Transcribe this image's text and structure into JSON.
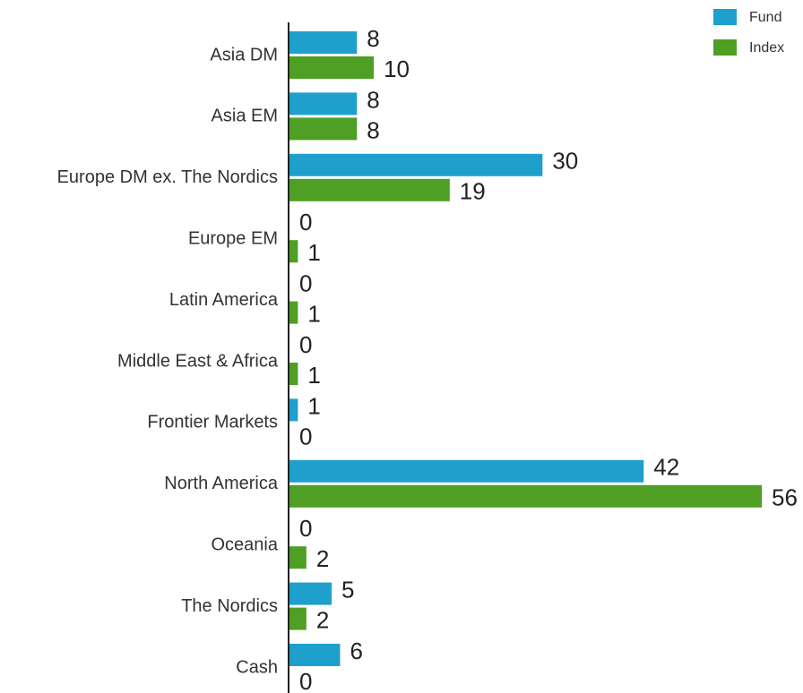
{
  "chart_data": {
    "type": "bar",
    "orientation": "horizontal",
    "categories": [
      "Asia DM",
      "Asia EM",
      "Europe DM ex. The Nordics",
      "Europe EM",
      "Latin America",
      "Middle East & Africa",
      "Frontier Markets",
      "North America",
      "Oceania",
      "The Nordics",
      "Cash"
    ],
    "series": [
      {
        "name": "Fund",
        "color": "#1f9fcc",
        "values": [
          8,
          8,
          30,
          0,
          0,
          0,
          1,
          42,
          0,
          5,
          6
        ]
      },
      {
        "name": "Index",
        "color": "#4e9f23",
        "values": [
          10,
          8,
          19,
          1,
          1,
          1,
          0,
          56,
          2,
          2,
          0
        ]
      }
    ],
    "xlim": [
      0,
      56
    ],
    "legend": "upper right"
  }
}
